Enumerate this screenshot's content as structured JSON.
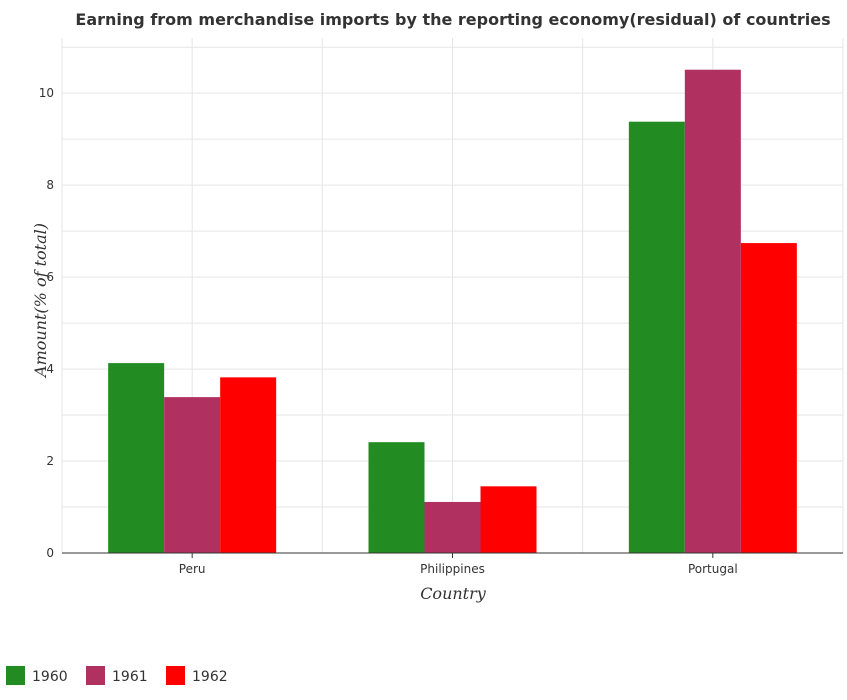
{
  "chart_data": {
    "type": "bar",
    "title": "Earning from merchandise imports by the reporting economy(residual) of countries",
    "xlabel": "Country",
    "ylabel": "Amount(% of total)",
    "categories": [
      "Peru",
      "Philippines",
      "Portugal"
    ],
    "series": [
      {
        "name": "1960",
        "color": "#228b22",
        "values": [
          4.13,
          2.41,
          9.38
        ]
      },
      {
        "name": "1961",
        "color": "#b03060",
        "values": [
          3.39,
          1.11,
          10.51
        ]
      },
      {
        "name": "1962",
        "color": "#ff0000",
        "values": [
          3.82,
          1.45,
          6.74
        ]
      }
    ],
    "ylim": [
      0,
      11.2
    ],
    "yticks": [
      0,
      2,
      4,
      6,
      8,
      10
    ],
    "grid": true,
    "legend": "bottom-left"
  }
}
